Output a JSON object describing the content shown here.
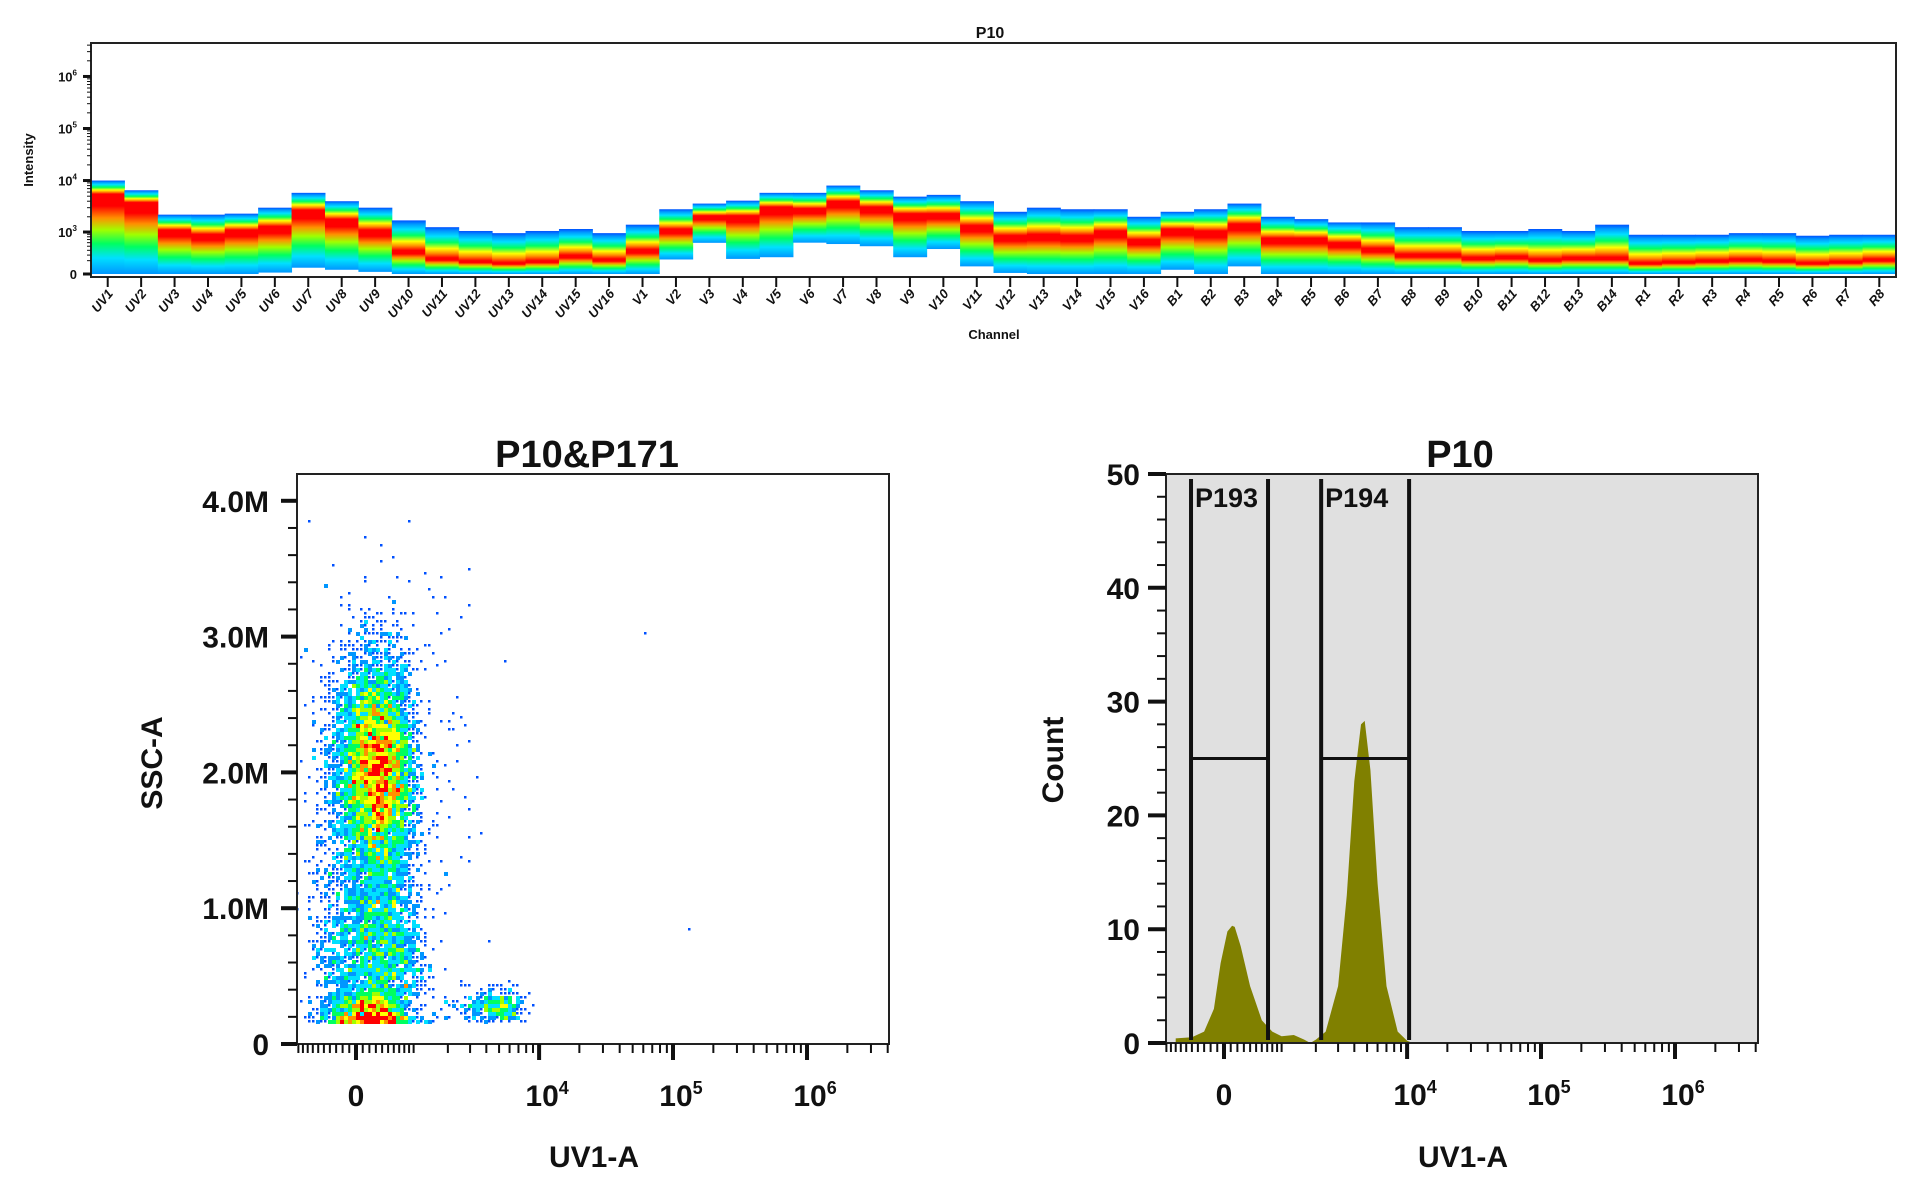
{
  "colors": {
    "heat": [
      "#0050ff",
      "#0096ff",
      "#00e0ff",
      "#00ff60",
      "#a0ff00",
      "#ffff00",
      "#ff9000",
      "#ff0000"
    ],
    "histogram_fill": "#808000",
    "histogram_bg": "#e0e0e0",
    "frame": "#222222"
  },
  "chart_data": [
    {
      "type": "heatmap",
      "title": "P10",
      "xlabel": "Channel",
      "ylabel": "Intensity",
      "yscale": "biexponential",
      "ylim": [
        0,
        4300000
      ],
      "yticks": [
        {
          "value": 0,
          "base": "0",
          "exp": ""
        },
        {
          "value": 1000,
          "base": "10",
          "exp": "3"
        },
        {
          "value": 10000,
          "base": "10",
          "exp": "4"
        },
        {
          "value": 100000,
          "base": "10",
          "exp": "5"
        },
        {
          "value": 1000000,
          "base": "10",
          "exp": "6"
        }
      ],
      "channels": [
        "UV1",
        "UV2",
        "UV3",
        "UV4",
        "UV5",
        "UV6",
        "UV7",
        "UV8",
        "UV9",
        "UV10",
        "UV11",
        "UV12",
        "UV13",
        "UV14",
        "UV15",
        "UV16",
        "V1",
        "V2",
        "V3",
        "V4",
        "V5",
        "V6",
        "V7",
        "V8",
        "V9",
        "V10",
        "V11",
        "V12",
        "V13",
        "V14",
        "V15",
        "V16",
        "B1",
        "B2",
        "B3",
        "B4",
        "B5",
        "B6",
        "B7",
        "B8",
        "B9",
        "B10",
        "B11",
        "B12",
        "B13",
        "B14",
        "R1",
        "R2",
        "R3",
        "R4",
        "R5",
        "R6",
        "R7",
        "R8"
      ],
      "max": [
        10000,
        6500,
        2200,
        2200,
        2300,
        3000,
        5800,
        4000,
        3000,
        1700,
        1250,
        1050,
        950,
        1050,
        1150,
        950,
        1400,
        2800,
        3600,
        4100,
        5800,
        5800,
        8000,
        6500,
        4900,
        5300,
        4000,
        2500,
        3000,
        2800,
        2800,
        2000,
        2500,
        2800,
        3600,
        2000,
        1800,
        1550,
        1550,
        1250,
        1250,
        1050,
        1050,
        1150,
        1050,
        1400,
        880,
        880,
        880,
        950,
        950,
        840,
        880,
        880
      ],
      "peak": [
        5500,
        3800,
        1100,
        900,
        1100,
        1300,
        2700,
        1800,
        1100,
        400,
        250,
        200,
        170,
        200,
        300,
        230,
        420,
        1150,
        2100,
        2100,
        3100,
        2900,
        4000,
        3100,
        2300,
        2300,
        1350,
        850,
        900,
        850,
        1050,
        700,
        1150,
        1050,
        1450,
        750,
        750,
        600,
        450,
        320,
        320,
        260,
        280,
        230,
        260,
        260,
        170,
        190,
        210,
        230,
        210,
        170,
        190,
        230
      ],
      "min": [
        0,
        0,
        0,
        0,
        0,
        20,
        90,
        60,
        30,
        0,
        0,
        0,
        0,
        0,
        0,
        0,
        0,
        220,
        595,
        230,
        260,
        600,
        560,
        500,
        260,
        430,
        110,
        15,
        0,
        0,
        0,
        0,
        60,
        0,
        110,
        0,
        0,
        0,
        0,
        0,
        0,
        0,
        0,
        0,
        0,
        0,
        0,
        0,
        0,
        0,
        0,
        0,
        0,
        0
      ]
    },
    {
      "type": "scatter",
      "title": "P10&P171",
      "xlabel": "UV1-A",
      "ylabel": "SSC-A",
      "xscale": "biexponential",
      "xlim": [
        -1030,
        4100000
      ],
      "ylim": [
        0,
        4200000
      ],
      "xticks": [
        {
          "value": 0,
          "base": "0",
          "exp": ""
        },
        {
          "value": 10000,
          "base": "10",
          "exp": "4"
        },
        {
          "value": 100000,
          "base": "10",
          "exp": "5"
        },
        {
          "value": 1000000,
          "base": "10",
          "exp": "6"
        }
      ],
      "yticks": [
        {
          "value": 0,
          "label": "0"
        },
        {
          "value": 1000000,
          "label": "1.0M"
        },
        {
          "value": 2000000,
          "label": "2.0M"
        },
        {
          "value": 3000000,
          "label": "3.0M"
        },
        {
          "value": 4000000,
          "label": "4.0M"
        }
      ],
      "populations": [
        {
          "n": 6000,
          "x_mean": 300,
          "x_sd": 330,
          "y_mean": 2000000,
          "y_sd": 430000
        },
        {
          "n": 2600,
          "x_mean": 300,
          "x_sd": 420,
          "y_mean": 650000,
          "y_sd": 380000
        },
        {
          "n": 700,
          "x_mean": 150,
          "x_sd": 280,
          "y_mean": 250000,
          "y_sd": 70000
        },
        {
          "n": 350,
          "x_mean": 4800,
          "x_sd": 1400,
          "y_mean": 280000,
          "y_sd": 60000
        },
        {
          "n": 260,
          "x_mean": 500,
          "x_sd": 1300,
          "y_mean": 2000000,
          "y_sd": 1000000
        }
      ],
      "outliers": [
        [
          65000,
          3020000
        ],
        [
          130000,
          840000
        ]
      ]
    },
    {
      "type": "area",
      "title": "P10",
      "xlabel": "UV1-A",
      "ylabel": "Count",
      "xscale": "biexponential",
      "xlim": [
        -1030,
        4100000
      ],
      "ylim": [
        0,
        50
      ],
      "xticks": [
        {
          "value": 0,
          "base": "0",
          "exp": ""
        },
        {
          "value": 10000,
          "base": "10",
          "exp": "4"
        },
        {
          "value": 100000,
          "base": "10",
          "exp": "5"
        },
        {
          "value": 1000000,
          "base": "10",
          "exp": "6"
        }
      ],
      "yticks": [
        {
          "value": 0,
          "label": "0"
        },
        {
          "value": 10,
          "label": "10"
        },
        {
          "value": 20,
          "label": "20"
        },
        {
          "value": 30,
          "label": "30"
        },
        {
          "value": 40,
          "label": "40"
        },
        {
          "value": 50,
          "label": "50"
        }
      ],
      "x": [
        -800,
        -500,
        -300,
        -150,
        -50,
        50,
        120,
        160,
        250,
        400,
        600,
        800,
        1000,
        1300,
        1600,
        1800,
        2000,
        2400,
        3000,
        3500,
        4000,
        4500,
        4800,
        5300,
        6000,
        7000,
        8500,
        10000,
        11000
      ],
      "y": [
        0.4,
        0.5,
        1,
        3,
        7,
        9.8,
        10.3,
        10.2,
        8.5,
        5,
        2,
        1,
        0.6,
        0.7,
        0.3,
        0,
        0.3,
        1,
        5,
        13,
        23,
        28,
        28.3,
        24,
        14,
        5,
        1,
        0.2,
        0
      ],
      "gates": [
        {
          "name": "P193",
          "x_min": -515,
          "x_max": 716,
          "level": 25
        },
        {
          "name": "P194",
          "x_min": 2207,
          "x_max": 10350,
          "level": 25
        }
      ]
    }
  ]
}
